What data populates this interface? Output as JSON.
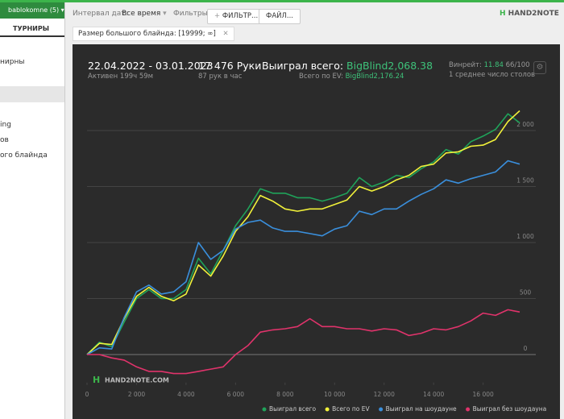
{
  "sidebar": {
    "account": "bablokomne (5)",
    "tab": "ТУРНИРЫ",
    "items": [
      "нирны",
      "ing",
      "ов",
      "ого блайнда"
    ]
  },
  "toolbar": {
    "date_label": "Интервал дат:",
    "date_value": "Все время",
    "filters_label": "Фильтры:",
    "filter_button": "ФИЛЬТР...",
    "file_button": "ФАЙЛ...",
    "logo": "HAND2NOTE"
  },
  "filter_chip": "Размер большого блайнда: [19999; ∞]",
  "stats": {
    "period": "22.04.2022 - 03.01.2023",
    "active": "Активен 199ч 59м",
    "hands": "17 476 Руки",
    "hands_per_hour": "87 рук в час",
    "won_label": "Выиграл всего:",
    "won_value": "BigBlind2,068.38",
    "ev_label": "Всего по EV:",
    "ev_value": "BigBlind2,176.24",
    "winrate_label": "Винрейт:",
    "winrate_value": "11.84",
    "winrate_unit": "66/100",
    "tables": "1 среднее число столов"
  },
  "chart_data": {
    "type": "line",
    "watermark": "HAND2NOTE.COM",
    "x": [
      0,
      500,
      1000,
      1500,
      2000,
      2500,
      3000,
      3500,
      4000,
      4500,
      5000,
      5500,
      6000,
      6500,
      7000,
      7500,
      8000,
      8500,
      9000,
      9500,
      10000,
      10500,
      11000,
      11500,
      12000,
      12500,
      13000,
      13500,
      14000,
      14500,
      15000,
      15500,
      16000,
      16500,
      17000,
      17476
    ],
    "xlim": [
      0,
      17476
    ],
    "xticks": [
      0,
      {
        "value": 2000,
        "label": "2 000"
      },
      {
        "value": 4000,
        "label": "4 000"
      },
      {
        "value": 6000,
        "label": "6 000"
      },
      {
        "value": 8000,
        "label": "8 000"
      },
      {
        "value": 10000,
        "label": "10 000"
      },
      {
        "value": 12000,
        "label": "12 000"
      },
      {
        "value": 14000,
        "label": "14 000"
      },
      {
        "value": 16000,
        "label": "16 000"
      }
    ],
    "ylim": [
      -250,
      2300
    ],
    "yticks": [
      0,
      500,
      {
        "value": 1000,
        "label": "1 000"
      },
      {
        "value": 1500,
        "label": "1 500"
      },
      {
        "value": 2000,
        "label": "2 000"
      }
    ],
    "grid": true,
    "series": [
      {
        "name": "Выиграл всего",
        "color": "#1fa35a",
        "values": [
          0,
          110,
          70,
          290,
          500,
          580,
          500,
          500,
          580,
          860,
          720,
          930,
          1150,
          1300,
          1480,
          1440,
          1440,
          1400,
          1400,
          1370,
          1400,
          1440,
          1580,
          1500,
          1540,
          1600,
          1580,
          1660,
          1720,
          1830,
          1790,
          1900,
          1950,
          2010,
          2150,
          2068.38
        ]
      },
      {
        "name": "Всего по EV",
        "color": "#f2f23a",
        "values": [
          0,
          100,
          90,
          320,
          520,
          600,
          520,
          480,
          540,
          800,
          700,
          880,
          1100,
          1230,
          1420,
          1370,
          1300,
          1280,
          1300,
          1300,
          1340,
          1380,
          1500,
          1460,
          1500,
          1560,
          1600,
          1680,
          1700,
          1800,
          1810,
          1860,
          1870,
          1920,
          2080,
          2176.24
        ]
      },
      {
        "name": "Выиграл на шоудауне",
        "color": "#3a8fdc",
        "values": [
          0,
          60,
          50,
          330,
          560,
          620,
          540,
          560,
          650,
          1000,
          850,
          930,
          1120,
          1180,
          1200,
          1130,
          1100,
          1100,
          1080,
          1060,
          1120,
          1150,
          1280,
          1250,
          1300,
          1300,
          1370,
          1430,
          1480,
          1560,
          1530,
          1570,
          1600,
          1630,
          1730,
          1700
        ]
      },
      {
        "name": "Выиграл без шоудауна",
        "color": "#e0336b",
        "values": [
          0,
          0,
          -30,
          -50,
          -110,
          -150,
          -150,
          -170,
          -170,
          -150,
          -130,
          -110,
          0,
          80,
          200,
          220,
          230,
          250,
          320,
          250,
          250,
          230,
          230,
          210,
          230,
          220,
          170,
          190,
          230,
          220,
          250,
          300,
          370,
          350,
          400,
          380
        ]
      }
    ]
  }
}
